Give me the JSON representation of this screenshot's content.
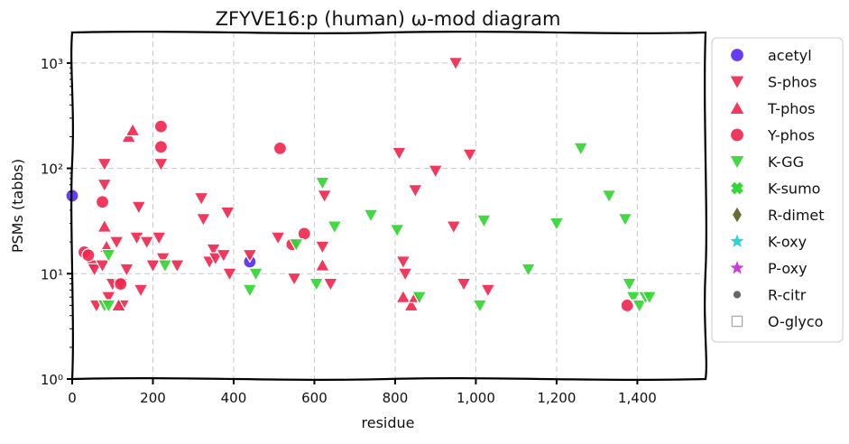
{
  "chart_data": {
    "type": "scatter",
    "title": "ZFYVE16:p (human) ω-mod diagram",
    "xlabel": "residue",
    "ylabel": "PSMs (tabbs)",
    "xlim": [
      0,
      1569
    ],
    "ylim": [
      1,
      2000
    ],
    "yscale": "log",
    "x_ticks": [
      0,
      200,
      400,
      600,
      800,
      1000,
      1200,
      1400
    ],
    "x_tick_labels": [
      "0",
      "200",
      "400",
      "600",
      "800",
      "1,000",
      "1,200",
      "1,400"
    ],
    "y_ticks": [
      1,
      10,
      100,
      1000
    ],
    "y_tick_labels": [
      "10⁰",
      "10¹",
      "10²",
      "10³"
    ],
    "grid": true,
    "legend_position": "right, outside plot",
    "series": [
      {
        "name": "acetyl",
        "marker": "circle",
        "color": "#5a2cf0",
        "points": [
          [
            0,
            55
          ],
          [
            440,
            13
          ]
        ]
      },
      {
        "name": "S-phos",
        "marker": "triangle-down",
        "color": "#f0284f",
        "points": [
          [
            50,
            12
          ],
          [
            55,
            11
          ],
          [
            60,
            5
          ],
          [
            75,
            12
          ],
          [
            80,
            110
          ],
          [
            80,
            70
          ],
          [
            90,
            6
          ],
          [
            100,
            8
          ],
          [
            110,
            20
          ],
          [
            120,
            8
          ],
          [
            125,
            5
          ],
          [
            135,
            11
          ],
          [
            160,
            22
          ],
          [
            165,
            43
          ],
          [
            170,
            7
          ],
          [
            185,
            20
          ],
          [
            200,
            12
          ],
          [
            215,
            22
          ],
          [
            220,
            110
          ],
          [
            225,
            14
          ],
          [
            260,
            12
          ],
          [
            320,
            52
          ],
          [
            325,
            33
          ],
          [
            340,
            13
          ],
          [
            350,
            17
          ],
          [
            355,
            14
          ],
          [
            375,
            15
          ],
          [
            385,
            38
          ],
          [
            390,
            10
          ],
          [
            440,
            15
          ],
          [
            510,
            22
          ],
          [
            550,
            9
          ],
          [
            620,
            18
          ],
          [
            625,
            55
          ],
          [
            640,
            8
          ],
          [
            810,
            140
          ],
          [
            820,
            13
          ],
          [
            825,
            10
          ],
          [
            850,
            62
          ],
          [
            900,
            95
          ],
          [
            945,
            28
          ],
          [
            950,
            1000
          ],
          [
            970,
            8
          ],
          [
            985,
            135
          ],
          [
            1030,
            7
          ]
        ]
      },
      {
        "name": "T-phos",
        "marker": "triangle-up",
        "color": "#f0284f",
        "points": [
          [
            80,
            28
          ],
          [
            85,
            18
          ],
          [
            115,
            5
          ],
          [
            140,
            200
          ],
          [
            150,
            230
          ],
          [
            620,
            12
          ],
          [
            820,
            6
          ],
          [
            840,
            5
          ],
          [
            850,
            6
          ]
        ]
      },
      {
        "name": "Y-phos",
        "marker": "circle",
        "color": "#f0284f",
        "points": [
          [
            30,
            16
          ],
          [
            40,
            15
          ],
          [
            75,
            48
          ],
          [
            120,
            8
          ],
          [
            220,
            250
          ],
          [
            220,
            160
          ],
          [
            515,
            155
          ],
          [
            545,
            19
          ],
          [
            575,
            24
          ],
          [
            1375,
            5
          ]
        ]
      },
      {
        "name": "K-GG",
        "marker": "triangle-down",
        "color": "#33d633",
        "points": [
          [
            80,
            5
          ],
          [
            90,
            5
          ],
          [
            90,
            15
          ],
          [
            230,
            12
          ],
          [
            440,
            7
          ],
          [
            455,
            10
          ],
          [
            555,
            19
          ],
          [
            605,
            8
          ],
          [
            620,
            73
          ],
          [
            650,
            28
          ],
          [
            740,
            36
          ],
          [
            805,
            26
          ],
          [
            860,
            6
          ],
          [
            1010,
            5
          ],
          [
            1020,
            32
          ],
          [
            1130,
            11
          ],
          [
            1200,
            30
          ],
          [
            1260,
            155
          ],
          [
            1330,
            55
          ],
          [
            1370,
            33
          ],
          [
            1380,
            8
          ],
          [
            1390,
            6
          ],
          [
            1405,
            5
          ],
          [
            1420,
            6
          ],
          [
            1430,
            6
          ]
        ]
      },
      {
        "name": "K-sumo",
        "marker": "cross",
        "color": "#33d633",
        "points": []
      },
      {
        "name": "R-dimet",
        "marker": "diamond",
        "color": "#6b6b3a",
        "points": []
      },
      {
        "name": "K-oxy",
        "marker": "star",
        "color": "#2ad4d4",
        "points": []
      },
      {
        "name": "P-oxy",
        "marker": "star",
        "color": "#c83cd8",
        "points": []
      },
      {
        "name": "R-citr",
        "marker": "small-circle",
        "color": "#666666",
        "points": []
      },
      {
        "name": "O-glyco",
        "marker": "square-open",
        "color": "#aaaaaa",
        "points": []
      }
    ]
  }
}
